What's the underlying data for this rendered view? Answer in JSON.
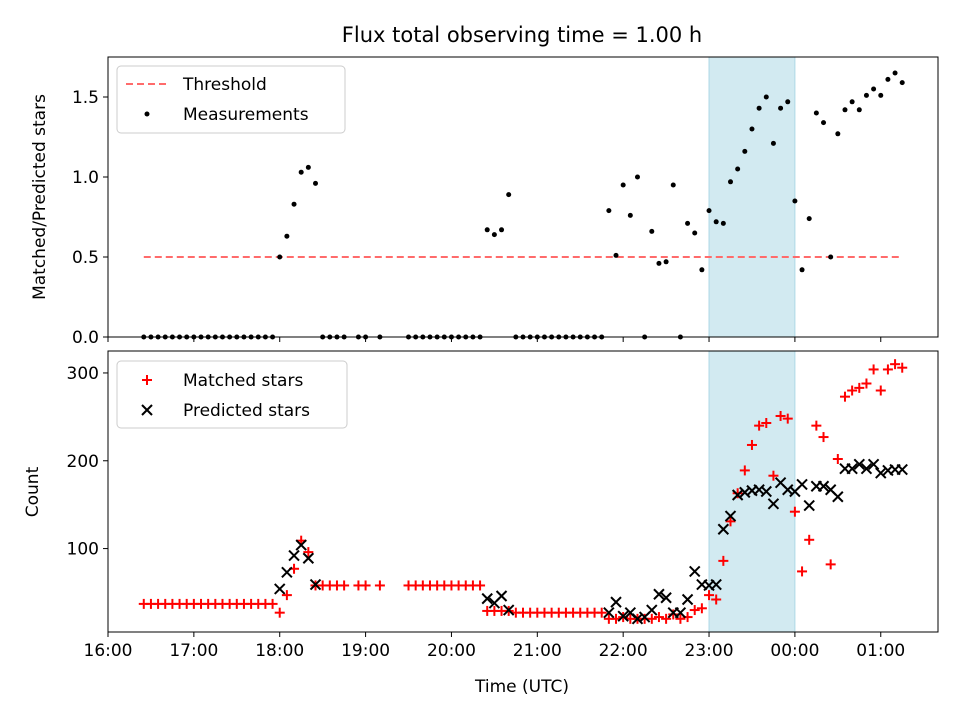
{
  "chart_data": [
    {
      "type": "scatter",
      "title": "Flux total observing time = 1.00 h",
      "ylabel": "Matched/Predicted stars",
      "xlim": [
        "16:00",
        "01:40"
      ],
      "ylim": [
        0,
        1.75
      ],
      "y_ticks": [
        "0.0",
        "0.5",
        "1.0",
        "1.5"
      ],
      "legend_position": "upper-left",
      "highlight_span": {
        "from": "23:00",
        "to": "00:00",
        "color": "#add8e6"
      },
      "threshold": {
        "name": "Threshold",
        "value": 0.5,
        "from": "16:25",
        "to": "01:15",
        "color": "#ff6b6b"
      },
      "series": [
        {
          "name": "Measurements",
          "color": "#000000",
          "points": [
            [
              "16:25",
              0
            ],
            [
              "16:30",
              0
            ],
            [
              "16:35",
              0
            ],
            [
              "16:40",
              0
            ],
            [
              "16:45",
              0
            ],
            [
              "16:50",
              0
            ],
            [
              "16:55",
              0
            ],
            [
              "17:00",
              0
            ],
            [
              "17:05",
              0
            ],
            [
              "17:10",
              0
            ],
            [
              "17:15",
              0
            ],
            [
              "17:20",
              0
            ],
            [
              "17:25",
              0
            ],
            [
              "17:30",
              0
            ],
            [
              "17:35",
              0
            ],
            [
              "17:40",
              0
            ],
            [
              "17:45",
              0
            ],
            [
              "17:50",
              0
            ],
            [
              "17:55",
              0
            ],
            [
              "18:00",
              0.5
            ],
            [
              "18:05",
              0.63
            ],
            [
              "18:10",
              0.83
            ],
            [
              "18:15",
              1.03
            ],
            [
              "18:20",
              1.06
            ],
            [
              "18:25",
              0.96
            ],
            [
              "18:30",
              0
            ],
            [
              "18:35",
              0
            ],
            [
              "18:40",
              0
            ],
            [
              "18:45",
              0
            ],
            [
              "18:55",
              0
            ],
            [
              "19:00",
              0
            ],
            [
              "19:10",
              0
            ],
            [
              "19:30",
              0
            ],
            [
              "19:35",
              0
            ],
            [
              "19:40",
              0
            ],
            [
              "19:45",
              0
            ],
            [
              "19:50",
              0
            ],
            [
              "19:55",
              0
            ],
            [
              "20:00",
              0
            ],
            [
              "20:05",
              0
            ],
            [
              "20:10",
              0
            ],
            [
              "20:15",
              0
            ],
            [
              "20:20",
              0
            ],
            [
              "20:25",
              0.67
            ],
            [
              "20:30",
              0.64
            ],
            [
              "20:35",
              0.67
            ],
            [
              "20:40",
              0.89
            ],
            [
              "20:45",
              0
            ],
            [
              "20:50",
              0
            ],
            [
              "20:55",
              0
            ],
            [
              "21:00",
              0
            ],
            [
              "21:05",
              0
            ],
            [
              "21:10",
              0
            ],
            [
              "21:15",
              0
            ],
            [
              "21:20",
              0
            ],
            [
              "21:25",
              0
            ],
            [
              "21:30",
              0
            ],
            [
              "21:35",
              0
            ],
            [
              "21:40",
              0
            ],
            [
              "21:45",
              0
            ],
            [
              "21:50",
              0.79
            ],
            [
              "21:55",
              0.51
            ],
            [
              "22:00",
              0.95
            ],
            [
              "22:05",
              0.76
            ],
            [
              "22:10",
              1.0
            ],
            [
              "22:15",
              0
            ],
            [
              "22:20",
              0.66
            ],
            [
              "22:25",
              0.46
            ],
            [
              "22:30",
              0.47
            ],
            [
              "22:35",
              0.95
            ],
            [
              "22:40",
              0
            ],
            [
              "22:45",
              0.71
            ],
            [
              "22:50",
              0.65
            ],
            [
              "22:55",
              0.42
            ],
            [
              "23:00",
              0.79
            ],
            [
              "23:05",
              0.72
            ],
            [
              "23:10",
              0.71
            ],
            [
              "23:15",
              0.97
            ],
            [
              "23:20",
              1.05
            ],
            [
              "23:25",
              1.16
            ],
            [
              "23:30",
              1.3
            ],
            [
              "23:35",
              1.43
            ],
            [
              "23:40",
              1.5
            ],
            [
              "23:45",
              1.21
            ],
            [
              "23:50",
              1.43
            ],
            [
              "23:55",
              1.47
            ],
            [
              "00:00",
              0.85
            ],
            [
              "00:05",
              0.42
            ],
            [
              "00:10",
              0.74
            ],
            [
              "00:15",
              1.4
            ],
            [
              "00:20",
              1.34
            ],
            [
              "00:25",
              0.5
            ],
            [
              "00:30",
              1.27
            ],
            [
              "00:35",
              1.42
            ],
            [
              "00:40",
              1.47
            ],
            [
              "00:45",
              1.42
            ],
            [
              "00:50",
              1.51
            ],
            [
              "00:55",
              1.55
            ],
            [
              "01:00",
              1.51
            ],
            [
              "01:05",
              1.61
            ],
            [
              "01:10",
              1.65
            ],
            [
              "01:15",
              1.59
            ]
          ]
        }
      ]
    },
    {
      "type": "scatter",
      "xlabel": "Time (UTC)",
      "ylabel": "Count",
      "xlim": [
        "16:00",
        "01:40"
      ],
      "ylim": [
        5,
        325
      ],
      "x_ticks": [
        "16:00",
        "17:00",
        "18:00",
        "19:00",
        "20:00",
        "21:00",
        "22:00",
        "23:00",
        "00:00",
        "01:00"
      ],
      "y_ticks": [
        "100",
        "200",
        "300"
      ],
      "legend_position": "upper-left",
      "highlight_span": {
        "from": "23:00",
        "to": "00:00",
        "color": "#add8e6"
      },
      "series": [
        {
          "name": "Matched stars",
          "color": "#ff0000",
          "points": [
            [
              "16:25",
              37
            ],
            [
              "16:30",
              37
            ],
            [
              "16:35",
              37
            ],
            [
              "16:40",
              37
            ],
            [
              "16:45",
              37
            ],
            [
              "16:50",
              37
            ],
            [
              "16:55",
              37
            ],
            [
              "17:00",
              37
            ],
            [
              "17:05",
              37
            ],
            [
              "17:10",
              37
            ],
            [
              "17:15",
              37
            ],
            [
              "17:20",
              37
            ],
            [
              "17:25",
              37
            ],
            [
              "17:30",
              37
            ],
            [
              "17:35",
              37
            ],
            [
              "17:40",
              37
            ],
            [
              "17:45",
              37
            ],
            [
              "17:50",
              37
            ],
            [
              "17:55",
              37
            ],
            [
              "18:00",
              27
            ],
            [
              "18:05",
              47
            ],
            [
              "18:10",
              77
            ],
            [
              "18:15",
              109
            ],
            [
              "18:20",
              96
            ],
            [
              "18:25",
              58
            ],
            [
              "18:30",
              58
            ],
            [
              "18:35",
              58
            ],
            [
              "18:40",
              58
            ],
            [
              "18:45",
              58
            ],
            [
              "18:55",
              58
            ],
            [
              "19:00",
              58
            ],
            [
              "19:10",
              58
            ],
            [
              "19:30",
              58
            ],
            [
              "19:35",
              58
            ],
            [
              "19:40",
              58
            ],
            [
              "19:45",
              58
            ],
            [
              "19:50",
              58
            ],
            [
              "19:55",
              58
            ],
            [
              "20:00",
              58
            ],
            [
              "20:05",
              58
            ],
            [
              "20:10",
              58
            ],
            [
              "20:15",
              58
            ],
            [
              "20:20",
              58
            ],
            [
              "20:25",
              29
            ],
            [
              "20:30",
              29
            ],
            [
              "20:35",
              29
            ],
            [
              "20:40",
              29
            ],
            [
              "20:45",
              27
            ],
            [
              "20:50",
              27
            ],
            [
              "20:55",
              27
            ],
            [
              "21:00",
              27
            ],
            [
              "21:05",
              27
            ],
            [
              "21:10",
              27
            ],
            [
              "21:15",
              27
            ],
            [
              "21:20",
              27
            ],
            [
              "21:25",
              27
            ],
            [
              "21:30",
              27
            ],
            [
              "21:35",
              27
            ],
            [
              "21:40",
              27
            ],
            [
              "21:45",
              27
            ],
            [
              "21:50",
              20
            ],
            [
              "21:55",
              20
            ],
            [
              "22:00",
              22
            ],
            [
              "22:05",
              20
            ],
            [
              "22:10",
              20
            ],
            [
              "22:15",
              20
            ],
            [
              "22:20",
              20
            ],
            [
              "22:25",
              22
            ],
            [
              "22:30",
              20
            ],
            [
              "22:35",
              25
            ],
            [
              "22:40",
              20
            ],
            [
              "22:45",
              22
            ],
            [
              "22:50",
              30
            ],
            [
              "22:55",
              32
            ],
            [
              "23:00",
              47
            ],
            [
              "23:05",
              42
            ],
            [
              "23:10",
              86
            ],
            [
              "23:15",
              131
            ],
            [
              "23:20",
              163
            ],
            [
              "23:25",
              189
            ],
            [
              "23:30",
              218
            ],
            [
              "23:35",
              240
            ],
            [
              "23:40",
              243
            ],
            [
              "23:45",
              183
            ],
            [
              "23:50",
              251
            ],
            [
              "23:55",
              248
            ],
            [
              "00:00",
              142
            ],
            [
              "00:05",
              74
            ],
            [
              "00:10",
              110
            ],
            [
              "00:15",
              240
            ],
            [
              "00:20",
              227
            ],
            [
              "00:25",
              82
            ],
            [
              "00:30",
              202
            ],
            [
              "00:35",
              273
            ],
            [
              "00:40",
              280
            ],
            [
              "00:45",
              283
            ],
            [
              "00:50",
              288
            ],
            [
              "00:55",
              304
            ],
            [
              "01:00",
              280
            ],
            [
              "01:05",
              304
            ],
            [
              "01:10",
              310
            ],
            [
              "01:15",
              306
            ]
          ]
        },
        {
          "name": "Predicted stars",
          "color": "#000000",
          "points": [
            [
              "18:00",
              54
            ],
            [
              "18:05",
              73
            ],
            [
              "18:10",
              92
            ],
            [
              "18:15",
              104
            ],
            [
              "18:20",
              89
            ],
            [
              "18:25",
              59
            ],
            [
              "20:25",
              43
            ],
            [
              "20:30",
              38
            ],
            [
              "20:35",
              46
            ],
            [
              "20:40",
              30
            ],
            [
              "21:50",
              27
            ],
            [
              "21:55",
              39
            ],
            [
              "22:00",
              23
            ],
            [
              "22:05",
              27
            ],
            [
              "22:10",
              20
            ],
            [
              "22:15",
              22
            ],
            [
              "22:20",
              30
            ],
            [
              "22:25",
              48
            ],
            [
              "22:30",
              44
            ],
            [
              "22:35",
              27
            ],
            [
              "22:40",
              27
            ],
            [
              "22:45",
              42
            ],
            [
              "22:50",
              74
            ],
            [
              "22:55",
              59
            ],
            [
              "23:00",
              58
            ],
            [
              "23:05",
              59
            ],
            [
              "23:10",
              122
            ],
            [
              "23:15",
              137
            ],
            [
              "23:20",
              161
            ],
            [
              "23:25",
              164
            ],
            [
              "23:30",
              166
            ],
            [
              "23:35",
              167
            ],
            [
              "23:40",
              165
            ],
            [
              "23:45",
              151
            ],
            [
              "23:50",
              175
            ],
            [
              "23:55",
              167
            ],
            [
              "00:00",
              165
            ],
            [
              "00:05",
              173
            ],
            [
              "00:10",
              149
            ],
            [
              "00:15",
              171
            ],
            [
              "00:20",
              171
            ],
            [
              "00:25",
              167
            ],
            [
              "00:30",
              159
            ],
            [
              "00:35",
              191
            ],
            [
              "00:40",
              191
            ],
            [
              "00:45",
              196
            ],
            [
              "00:50",
              191
            ],
            [
              "00:55",
              196
            ],
            [
              "01:00",
              186
            ],
            [
              "01:05",
              189
            ],
            [
              "01:10",
              190
            ],
            [
              "01:15",
              190
            ]
          ]
        }
      ]
    }
  ]
}
